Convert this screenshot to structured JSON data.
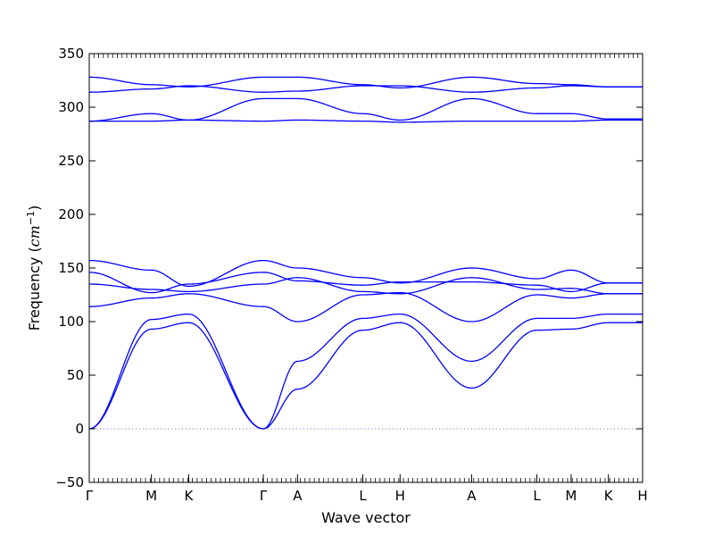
{
  "chart_data": {
    "type": "line",
    "title": "",
    "xlabel": "Wave vector",
    "ylabel": "Frequency (",
    "ylabel_unit_base": "cm",
    "ylabel_unit_exp": "−1",
    "ylabel_close": ")",
    "ylim": [
      -50,
      350
    ],
    "yticks": [
      -50,
      0,
      50,
      100,
      150,
      200,
      250,
      300,
      350
    ],
    "xlim": [
      0,
      17.8
    ],
    "grid": false,
    "legend": "none",
    "line_color": "#0000ff",
    "zero_line_color": "#6a6aff",
    "high_symmetry_points": [
      {
        "label": "Γ",
        "x": 0
      },
      {
        "label": "M",
        "x": 2.0
      },
      {
        "label": "K",
        "x": 3.2
      },
      {
        "label": "Γ",
        "x": 5.6
      },
      {
        "label": "A",
        "x": 6.7
      },
      {
        "label": "L",
        "x": 8.8
      },
      {
        "label": "H",
        "x": 10.0
      },
      {
        "label": "A",
        "x": 12.3
      },
      {
        "label": "L",
        "x": 14.4
      },
      {
        "label": "M",
        "x": 15.5
      },
      {
        "label": "K",
        "x": 16.7
      },
      {
        "label": "H",
        "x": 17.8
      }
    ],
    "series": [
      {
        "values": [
          0,
          93,
          99,
          0,
          37,
          92,
          99,
          38,
          92,
          93,
          99,
          99
        ]
      },
      {
        "values": [
          0,
          102,
          107,
          0,
          63,
          103,
          107,
          63,
          103,
          103,
          107,
          107
        ]
      },
      {
        "values": [
          114,
          122,
          126,
          114,
          100,
          125,
          127,
          100,
          125,
          122,
          126,
          126
        ]
      },
      {
        "values": [
          135,
          130,
          128,
          135,
          141,
          128,
          126,
          141,
          130,
          131,
          126,
          126
        ]
      },
      {
        "values": [
          146,
          127,
          135,
          146,
          138,
          134,
          137,
          137,
          134,
          128,
          136,
          136
        ]
      },
      {
        "values": [
          157,
          148,
          133,
          157,
          150,
          141,
          136,
          150,
          140,
          148,
          136,
          136
        ]
      },
      {
        "values": [
          287,
          287,
          288,
          287,
          288,
          287,
          286,
          287,
          287,
          287,
          288,
          288
        ]
      },
      {
        "values": [
          287,
          294,
          288,
          308,
          308,
          294,
          288,
          308,
          294,
          294,
          289,
          289
        ]
      },
      {
        "values": [
          314,
          317,
          320,
          314,
          315,
          320,
          320,
          314,
          318,
          320,
          319,
          319
        ]
      },
      {
        "values": [
          328,
          321,
          319,
          328,
          328,
          321,
          318,
          328,
          322,
          321,
          319,
          319
        ]
      }
    ]
  }
}
